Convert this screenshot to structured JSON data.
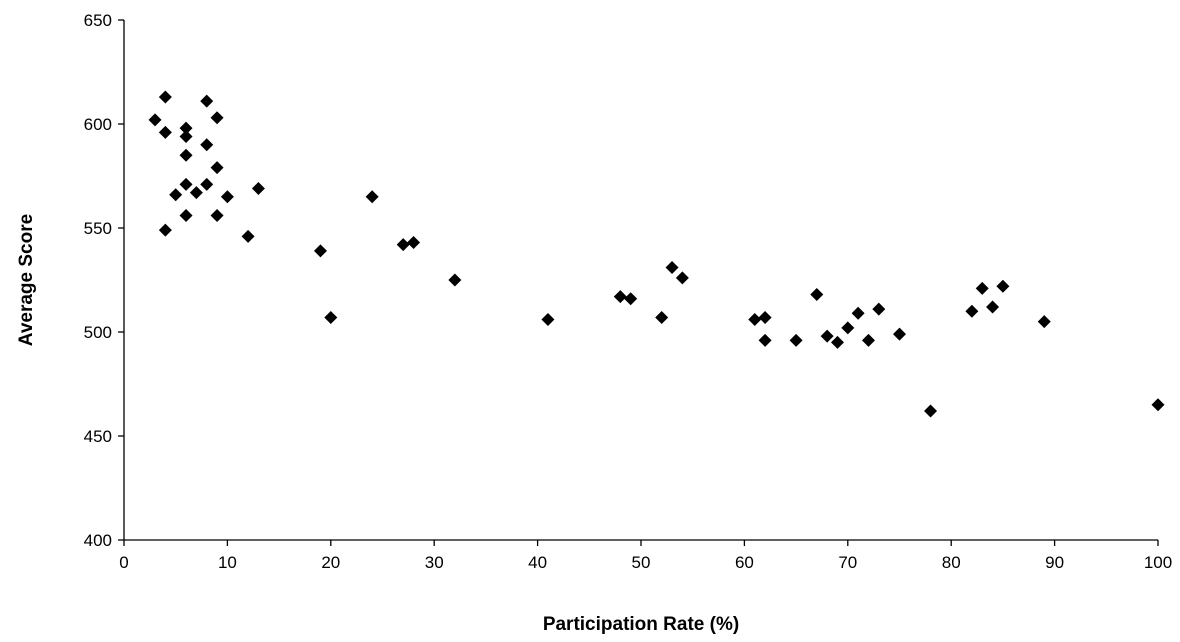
{
  "chart_data": {
    "type": "scatter",
    "title": "",
    "xlabel": "Participation Rate (%)",
    "ylabel": "Average Score",
    "xlim": [
      0,
      100
    ],
    "ylim": [
      400,
      650
    ],
    "xticks": [
      0,
      10,
      20,
      30,
      40,
      50,
      60,
      70,
      80,
      90,
      100
    ],
    "yticks": [
      400,
      450,
      500,
      550,
      600,
      650
    ],
    "grid": false,
    "legend": "none",
    "marker": "diamond",
    "marker_color": "#000000",
    "series": [
      {
        "points": [
          [
            3,
            602
          ],
          [
            4,
            613
          ],
          [
            4,
            596
          ],
          [
            4,
            549
          ],
          [
            5,
            566
          ],
          [
            6,
            598
          ],
          [
            6,
            594
          ],
          [
            6,
            585
          ],
          [
            6,
            571
          ],
          [
            6,
            556
          ],
          [
            7,
            567
          ],
          [
            8,
            611
          ],
          [
            8,
            590
          ],
          [
            8,
            571
          ],
          [
            9,
            603
          ],
          [
            9,
            579
          ],
          [
            9,
            556
          ],
          [
            10,
            565
          ],
          [
            12,
            546
          ],
          [
            13,
            569
          ],
          [
            19,
            539
          ],
          [
            20,
            507
          ],
          [
            24,
            565
          ],
          [
            27,
            542
          ],
          [
            28,
            543
          ],
          [
            32,
            525
          ],
          [
            41,
            506
          ],
          [
            48,
            517
          ],
          [
            49,
            516
          ],
          [
            52,
            507
          ],
          [
            53,
            531
          ],
          [
            54,
            526
          ],
          [
            61,
            506
          ],
          [
            62,
            507
          ],
          [
            62,
            496
          ],
          [
            65,
            496
          ],
          [
            67,
            518
          ],
          [
            68,
            498
          ],
          [
            69,
            495
          ],
          [
            70,
            502
          ],
          [
            71,
            509
          ],
          [
            72,
            496
          ],
          [
            73,
            511
          ],
          [
            75,
            499
          ],
          [
            78,
            462
          ],
          [
            82,
            510
          ],
          [
            83,
            521
          ],
          [
            84,
            512
          ],
          [
            85,
            522
          ],
          [
            89,
            505
          ],
          [
            100,
            465
          ]
        ]
      }
    ]
  }
}
